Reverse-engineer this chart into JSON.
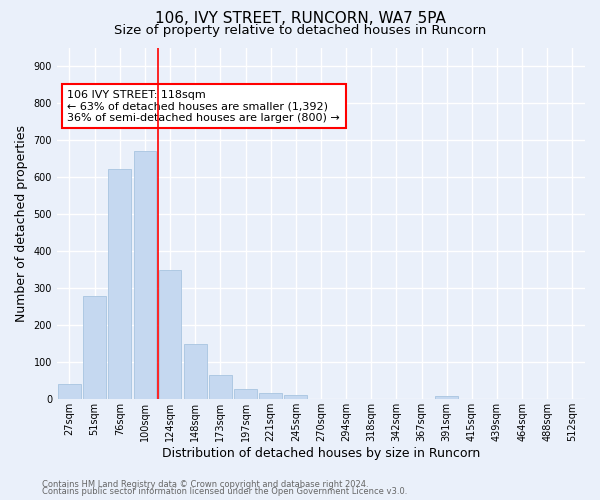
{
  "title": "106, IVY STREET, RUNCORN, WA7 5PA",
  "subtitle": "Size of property relative to detached houses in Runcorn",
  "xlabel": "Distribution of detached houses by size in Runcorn",
  "ylabel": "Number of detached properties",
  "footer1": "Contains HM Land Registry data © Crown copyright and database right 2024.",
  "footer2": "Contains public sector information licensed under the Open Government Licence v3.0.",
  "bar_labels": [
    "27sqm",
    "51sqm",
    "76sqm",
    "100sqm",
    "124sqm",
    "148sqm",
    "173sqm",
    "197sqm",
    "221sqm",
    "245sqm",
    "270sqm",
    "294sqm",
    "318sqm",
    "342sqm",
    "367sqm",
    "391sqm",
    "415sqm",
    "439sqm",
    "464sqm",
    "488sqm",
    "512sqm"
  ],
  "bar_values": [
    42,
    278,
    622,
    670,
    350,
    148,
    65,
    29,
    17,
    12,
    0,
    0,
    0,
    0,
    0,
    9,
    0,
    0,
    0,
    0,
    0
  ],
  "bar_color": "#c5d8f0",
  "bar_edge_color": "#a8c4e0",
  "vline_color": "red",
  "vline_pos": 3.5,
  "annotation_text": "106 IVY STREET: 118sqm\n← 63% of detached houses are smaller (1,392)\n36% of semi-detached houses are larger (800) →",
  "annotation_box_facecolor": "white",
  "annotation_box_edgecolor": "red",
  "ylim": [
    0,
    950
  ],
  "yticks": [
    0,
    100,
    200,
    300,
    400,
    500,
    600,
    700,
    800,
    900
  ],
  "bg_color": "#eaf0fa",
  "axes_bg_color": "#eaf0fa",
  "grid_color": "white",
  "title_fontsize": 11,
  "subtitle_fontsize": 9.5,
  "xlabel_fontsize": 9,
  "ylabel_fontsize": 9,
  "tick_fontsize": 7,
  "annotation_fontsize": 8,
  "footer_fontsize": 6
}
